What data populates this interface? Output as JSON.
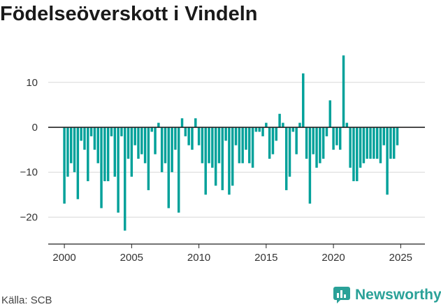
{
  "chart_data": {
    "type": "bar",
    "title": "Födelseöverskott i Vindeln",
    "xlabel": "",
    "ylabel": "",
    "bar_color": "#00a19a",
    "grid": true,
    "xlim": [
      1998.8,
      2026.8
    ],
    "ylim": [
      -26,
      19
    ],
    "x_ticks": [
      2000,
      2005,
      2010,
      2015,
      2020,
      2025
    ],
    "y_ticks": [
      10,
      0,
      -10,
      -20
    ],
    "y_tick_labels": [
      "10",
      "0",
      "−10",
      "−20"
    ],
    "series": [
      {
        "values": [
          -17,
          -11,
          -8,
          -10,
          -16,
          -3,
          -5,
          -12,
          -2,
          -5,
          -8,
          -18,
          -12,
          -12,
          -2,
          -11,
          -19,
          -2,
          -23,
          -7,
          -11,
          -4,
          -7,
          -6,
          -8,
          -14,
          -1,
          -6,
          1,
          -10,
          -8,
          -18,
          -10,
          -5,
          -19,
          2,
          -2,
          -4,
          -5,
          2,
          -4,
          -8,
          -15,
          -8,
          -9,
          -13,
          -8,
          -14,
          -3,
          -15,
          -13,
          -4,
          -8,
          -8,
          -5,
          -8,
          -9,
          -1,
          -1,
          -2,
          1,
          -7,
          -6,
          -3,
          3,
          1,
          -14,
          -11,
          -1,
          -6,
          1,
          12,
          -7,
          -17,
          -6,
          -9,
          -8,
          -7,
          -2,
          6,
          -5,
          -4,
          -5,
          16,
          1,
          -9,
          -12,
          -12,
          -9,
          -8,
          -7,
          -7,
          -7,
          -7,
          -8,
          -4,
          -15,
          -7,
          -7,
          -4
        ]
      }
    ]
  },
  "source": "Källa: SCB",
  "brand": {
    "name": "Newsworthy",
    "icon": "bar-chart-speech-bubble-icon",
    "color": "#2aa198"
  }
}
